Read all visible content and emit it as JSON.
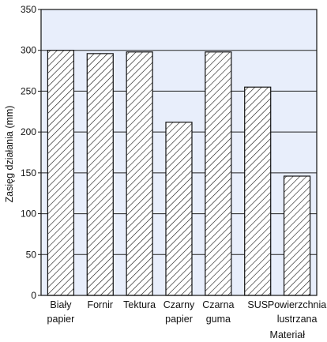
{
  "chart_data": {
    "type": "bar",
    "ylabel": "Zasięg działania (mm)",
    "xlabel": "Materiał",
    "ylim": [
      0,
      350
    ],
    "yticks": [
      0,
      50,
      100,
      150,
      200,
      250,
      300,
      350
    ],
    "grid": "horizontal",
    "categories": [
      [
        "Biały",
        "papier"
      ],
      [
        "Fornir"
      ],
      [
        "Tektura"
      ],
      [
        "Czarny",
        "papier"
      ],
      [
        "Czarna",
        "guma"
      ],
      [
        "SUS"
      ],
      [
        "Powierzchnia",
        "lustrzana"
      ]
    ],
    "values": [
      300,
      296,
      298,
      212,
      298,
      255,
      146
    ],
    "colors": {
      "plot_background": "#e8eefb",
      "bar_fill": "#ffffff",
      "hatch": "#111111",
      "grid": "#222222"
    }
  }
}
